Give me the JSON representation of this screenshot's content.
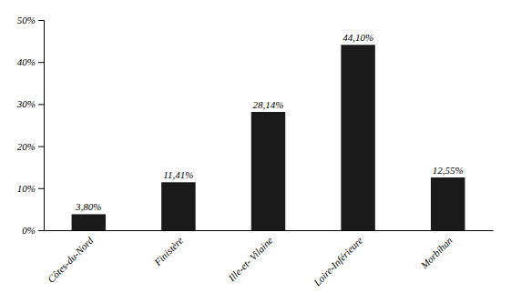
{
  "chart_data": {
    "type": "bar",
    "categories": [
      "Côtes-du-Nord",
      "Finistère",
      "Ille-et- Vilaine",
      "Loire-Inférieure",
      "Morbihan"
    ],
    "values": [
      3.8,
      11.41,
      28.14,
      44.1,
      12.55
    ],
    "value_labels": [
      "3,80%",
      "11,41%",
      "28,14%",
      "44,10%",
      "12,55%"
    ],
    "data_labels": true,
    "color": "#1a1a1a",
    "ylim": [
      0,
      50
    ],
    "yticks": [
      {
        "value": 0,
        "label": "0%"
      },
      {
        "value": 10,
        "label": "10%"
      },
      {
        "value": 20,
        "label": "20%"
      },
      {
        "value": 30,
        "label": "30%"
      },
      {
        "value": 40,
        "label": "40%"
      },
      {
        "value": 50,
        "label": "50%"
      }
    ],
    "grid": false
  }
}
